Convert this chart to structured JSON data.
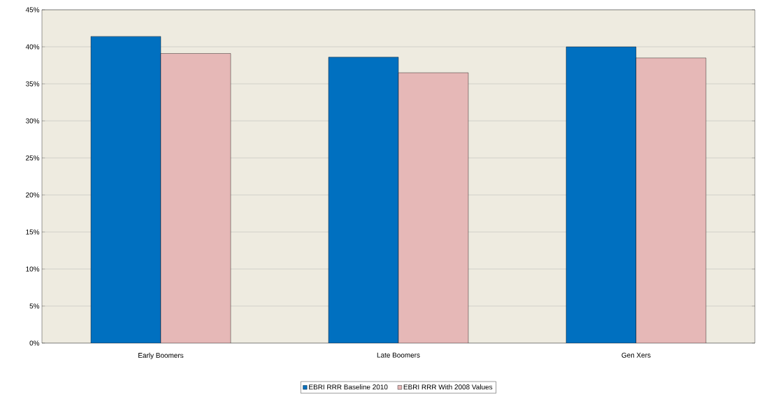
{
  "chart_data": {
    "type": "bar",
    "categories": [
      "Early Boomers",
      "Late Boomers",
      "Gen Xers"
    ],
    "series": [
      {
        "name": "EBRI RRR Baseline 2010",
        "color": "#0070c0",
        "values": [
          41.4,
          38.6,
          40.0
        ]
      },
      {
        "name": "EBRI RRR With 2008 Values",
        "color": "#e6b8b7",
        "values": [
          39.1,
          36.5,
          38.5
        ]
      }
    ],
    "ylim": [
      0,
      45
    ],
    "yticks": [
      {
        "value": 0,
        "label": "0%"
      },
      {
        "value": 5,
        "label": "5%"
      },
      {
        "value": 10,
        "label": "10%"
      },
      {
        "value": 15,
        "label": "15%"
      },
      {
        "value": 20,
        "label": "20%"
      },
      {
        "value": 25,
        "label": "25%"
      },
      {
        "value": 30,
        "label": "30%"
      },
      {
        "value": 35,
        "label": "35%"
      },
      {
        "value": 40,
        "label": "40%"
      },
      {
        "value": 45,
        "label": "45%"
      }
    ],
    "grid": "y",
    "legend": "bottom"
  }
}
